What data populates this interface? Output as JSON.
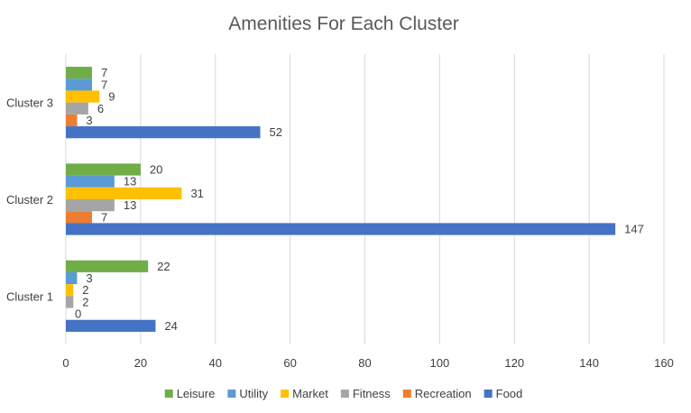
{
  "chart_data": {
    "type": "bar",
    "orientation": "horizontal",
    "title": "Amenities For Each Cluster",
    "xlabel": "",
    "ylabel": "",
    "categories": [
      "Cluster 1",
      "Cluster 2",
      "Cluster 3"
    ],
    "series": [
      {
        "name": "Leisure",
        "color": "#70ad47",
        "values": [
          22,
          20,
          7
        ]
      },
      {
        "name": "Utility",
        "color": "#5b9bd5",
        "values": [
          3,
          13,
          7
        ]
      },
      {
        "name": "Market",
        "color": "#ffc000",
        "values": [
          2,
          31,
          9
        ]
      },
      {
        "name": "Fitness",
        "color": "#a5a5a5",
        "values": [
          2,
          13,
          6
        ]
      },
      {
        "name": "Recreation",
        "color": "#ed7d31",
        "values": [
          0,
          7,
          3
        ]
      },
      {
        "name": "Food",
        "color": "#4472c4",
        "values": [
          24,
          147,
          52
        ]
      }
    ],
    "xlim": [
      0,
      160
    ],
    "xticks": [
      0,
      20,
      40,
      60,
      80,
      100,
      120,
      140,
      160
    ],
    "grid": true,
    "legend_position": "bottom",
    "data_labels": true
  }
}
